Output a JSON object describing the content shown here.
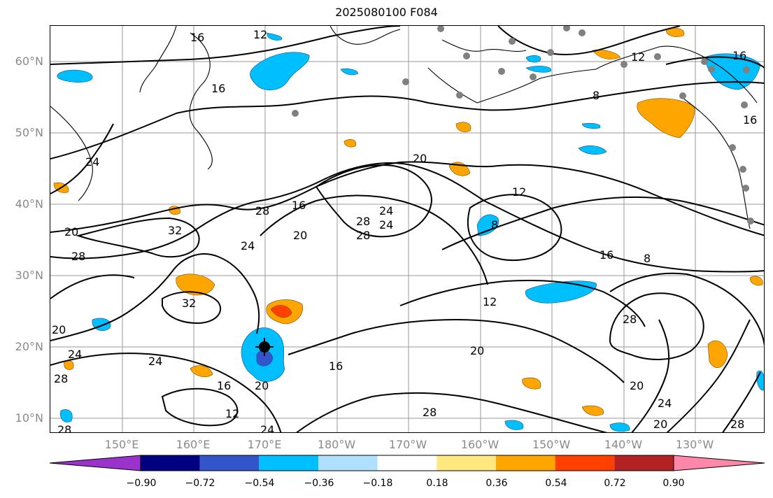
{
  "title": "2025080100 F084",
  "latitude_labels": [
    "60°N",
    "50°N",
    "40°N",
    "30°N",
    "20°N",
    "10°N"
  ],
  "longitude_labels": [
    "150°E",
    "160°E",
    "170°E",
    "180°W",
    "170°W",
    "160°W",
    "150°W",
    "140°W",
    "130°W"
  ],
  "colorbar": {
    "tick_labels": [
      "−0.90",
      "−0.72",
      "−0.54",
      "−0.36",
      "−0.18",
      "0.18",
      "0.36",
      "0.54",
      "0.72",
      "0.90"
    ],
    "colors": [
      "#9933cc",
      "#000080",
      "#3355cc",
      "#00bfff",
      "#afe0ff",
      "#ffffff",
      "#ffe880",
      "#ffa500",
      "#ff4000",
      "#b22222",
      "#ff88aa"
    ]
  },
  "contour_labels": [
    "16",
    "12",
    "16",
    "12",
    "16",
    "8",
    "16",
    "20",
    "24",
    "24",
    "28",
    "16",
    "20",
    "12",
    "28",
    "20",
    "28",
    "32",
    "24",
    "28",
    "24",
    "8",
    "16",
    "8",
    "32",
    "12",
    "20",
    "28",
    "20",
    "24",
    "16",
    "24",
    "12",
    "16",
    "20",
    "28",
    "20",
    "28",
    "28",
    "24",
    "20",
    "24",
    "28"
  ],
  "center_marker": "cross-hair marker"
}
